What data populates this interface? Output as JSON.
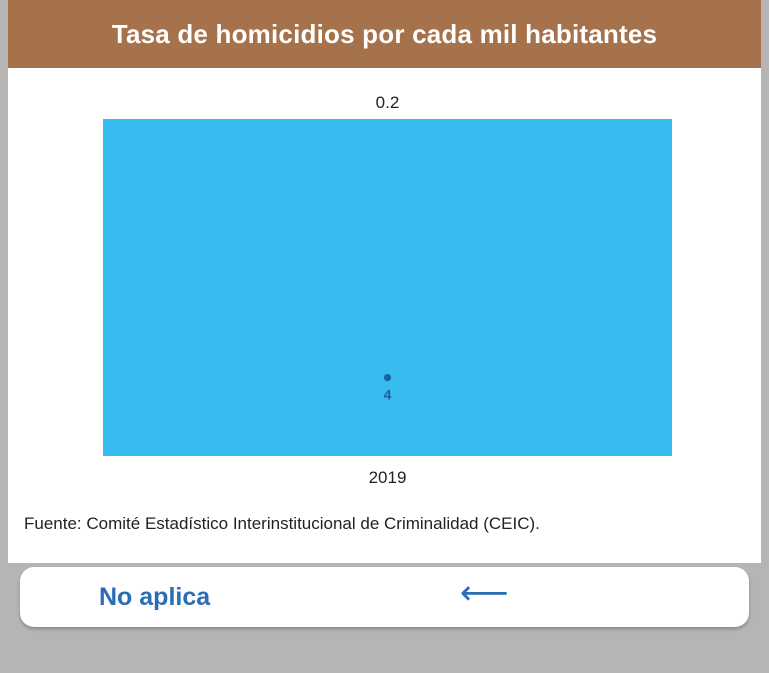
{
  "header": {
    "title": "Tasa de homicidios por cada mil habitantes"
  },
  "chart_data": {
    "type": "bar",
    "title": "Tasa de homicidios por cada mil habitantes",
    "categories": [
      "2019"
    ],
    "values": [
      0.2
    ],
    "value_labels": [
      "0.2"
    ],
    "point_series": {
      "values": [
        4
      ],
      "labels": [
        "4"
      ]
    },
    "xlabel": "",
    "ylabel": "",
    "grid": false,
    "colors": {
      "bar": "#37bcf0",
      "point": "#1e5fa0"
    }
  },
  "source": {
    "text": "Fuente: Comité Estadístico Interinstitucional de Criminalidad (CEIC)."
  },
  "footer": {
    "no_aplica_label": "No aplica",
    "back_icon": "arrow-left-icon",
    "back_glyph": "⟵"
  },
  "colors": {
    "header_bg": "#a6724b",
    "link": "#2a6db5",
    "page_bg": "#b5b5b5"
  }
}
